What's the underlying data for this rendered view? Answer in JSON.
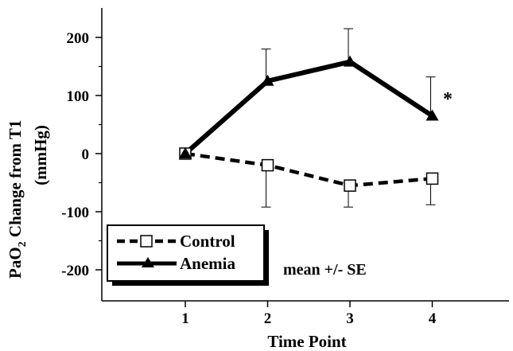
{
  "chart_data": {
    "type": "line",
    "xlabel": "Time Point",
    "ylabel": "PaO2 Change from T1 (mmHg)",
    "ylabel_line1_main": "PaO",
    "ylabel_line1_sub": "2",
    "ylabel_line1_rest": " Change from T1",
    "ylabel_line2": "(mmHg)",
    "x": [
      1,
      2,
      3,
      4
    ],
    "xticks": [
      "1",
      "2",
      "3",
      "4"
    ],
    "yticks": [
      "200",
      "100",
      "0",
      "-100",
      "-200"
    ],
    "xlim": [
      0,
      5
    ],
    "ylim": [
      -250,
      250
    ],
    "grid": false,
    "legend_position": "bottom-left",
    "series": [
      {
        "name": "Control",
        "values": [
          0,
          -20,
          -55,
          -43
        ],
        "error": [
          0,
          72,
          37,
          45
        ],
        "style": "dashed",
        "marker": "open-square",
        "color": "#000000"
      },
      {
        "name": "Anemia",
        "values": [
          0,
          125,
          158,
          65
        ],
        "error": [
          0,
          55,
          57,
          67
        ],
        "style": "solid",
        "marker": "filled-triangle",
        "color": "#000000"
      }
    ],
    "annotations": [
      {
        "text": "*",
        "x": 4,
        "y": 95
      },
      {
        "text": "mean +/- SE"
      }
    ]
  }
}
